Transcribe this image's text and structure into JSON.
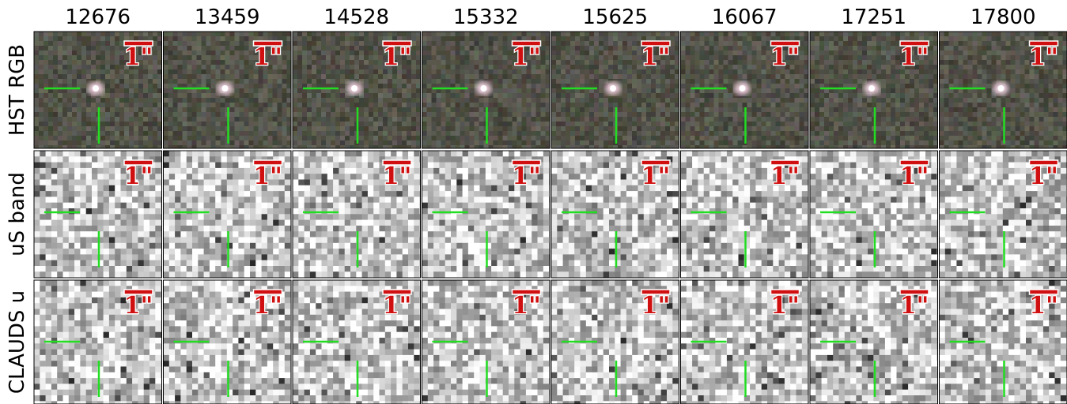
{
  "columns": [
    "12676",
    "13459",
    "14528",
    "15332",
    "15625",
    "16067",
    "17251",
    "17800"
  ],
  "rows": [
    "HST RGB",
    "uS band",
    "CLAUDS u"
  ],
  "scale_label": "1\""
}
